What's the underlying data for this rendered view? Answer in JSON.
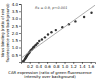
{
  "chart_data": {
    "type": "scatter",
    "xlabel": "CAR expression (ratio of green fluorescence\nintensity over background)",
    "ylabel": "Virus binding (ratio of red\nfluorescence over background)",
    "annotation": "Rs = 0.9, p<0.001",
    "series": [
      {
        "type": "scatter",
        "color": "#333333",
        "x": [
          0.05,
          0.07,
          0.09,
          0.1,
          0.11,
          0.12,
          0.13,
          0.14,
          0.15,
          0.16,
          0.18,
          0.19,
          0.2,
          0.22,
          0.24,
          0.26,
          0.28,
          0.3,
          0.33,
          0.35,
          0.38,
          0.42,
          0.48,
          0.55,
          0.62,
          0.7,
          0.8,
          0.95,
          1.1,
          1.25,
          1.45,
          1.62
        ],
        "values": [
          0.05,
          0.1,
          0.2,
          0.25,
          0.3,
          0.35,
          0.4,
          0.45,
          0.5,
          0.55,
          0.6,
          0.65,
          0.7,
          0.8,
          0.85,
          0.9,
          1.0,
          1.05,
          1.15,
          1.2,
          1.3,
          1.45,
          1.55,
          1.7,
          1.9,
          2.05,
          2.2,
          2.4,
          2.6,
          2.8,
          3.1,
          3.4
        ]
      },
      {
        "type": "line",
        "color": "#999999",
        "x": [
          0,
          1.7
        ],
        "values": [
          0.264254,
          3.915045
        ]
      }
    ],
    "xlim": [
      0,
      1.7
    ],
    "ylim": [
      0,
      4.0
    ],
    "xticks": [
      0.2,
      0.4,
      0.6,
      0.8,
      {
        "value": 1.0,
        "label": "1.0"
      },
      1.2,
      1.4,
      1.6
    ],
    "yticks": [
      0.5,
      {
        "value": 1.0,
        "label": "1.0"
      },
      1.5,
      {
        "value": 2.0,
        "label": "2.0"
      },
      2.5,
      {
        "value": 3.0,
        "label": "3.0"
      },
      3.5,
      {
        "value": 4.0,
        "label": "4.0"
      }
    ],
    "grid": false
  }
}
